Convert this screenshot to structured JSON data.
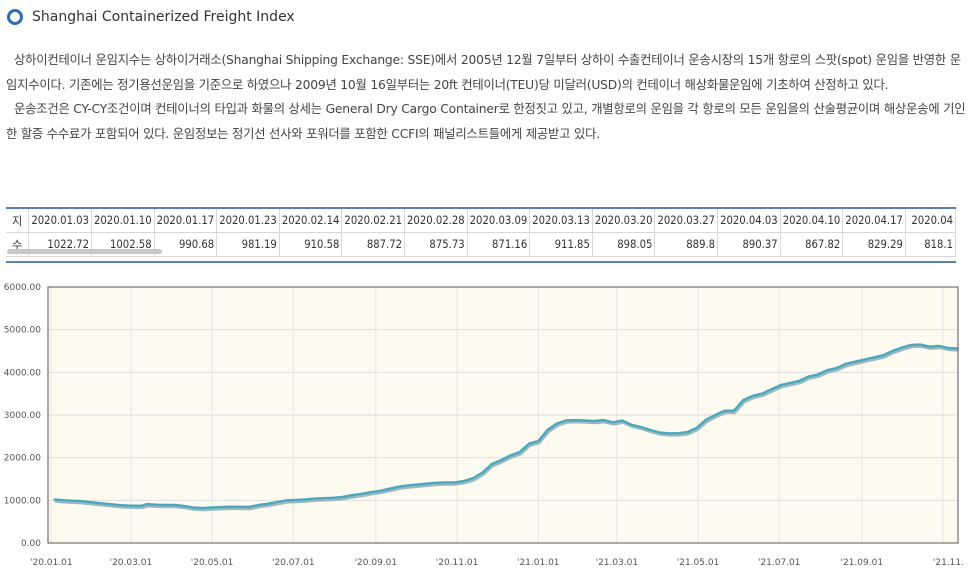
{
  "header": {
    "title": "Shanghai Containerized Freight Index"
  },
  "description": {
    "p1": "상하이컨테이너 운임지수는 상하이거래소(Shanghai Shipping Exchange: SSE)에서 2005년 12월 7일부터 상하이 수출컨테이너 운송시장의 15개 항로의 스팟(spot) 운임을 반영한 운임지수이다. 기존에는 정기용선운임을 기준으로 하였으나 2009년 10월 16일부터는 20ft 컨테이너(TEU)당 미달러(USD)의 컨테이너 해상화물운임에 기초하여 산정하고 있다.",
    "p2": "운송조건은 CY-CY조건이며 컨테이너의 타입과 화물의 상세는 General Dry Cargo Container로 한정짓고 있고, 개별항로의 운임을 각 항로의 모든 운임을의 산술평균이며 해상운송에 기인한 할증 수수료가 포함되어 있다. 운임정보는 정기선 선사와 포워더를 포함한 CCFI의 패널리스트들에게 제공받고 있다."
  },
  "table": {
    "row1_label": "지",
    "row2_label": "수",
    "dates": [
      "2020.01.03",
      "2020.01.10",
      "2020.01.17",
      "2020.01.23",
      "2020.02.14",
      "2020.02.21",
      "2020.02.28",
      "2020.03.09",
      "2020.03.13",
      "2020.03.20",
      "2020.03.27",
      "2020.04.03",
      "2020.04.10",
      "2020.04.17",
      "2020.04"
    ],
    "values": [
      "1022.72",
      "1002.58",
      "990.68",
      "981.19",
      "910.58",
      "887.72",
      "875.73",
      "871.16",
      "911.85",
      "898.05",
      "889.8",
      "890.37",
      "867.82",
      "829.29",
      "818.1"
    ]
  },
  "chart_data": {
    "type": "line",
    "series_color": "#4aa7bd",
    "plot_background": "#fdfbef",
    "grid": true,
    "ylim": [
      0,
      6000
    ],
    "y_ticks": [
      "0.00",
      "1000.00",
      "2000.00",
      "3000.00",
      "4000.00",
      "5000.00",
      "6000.00"
    ],
    "x_ticks": [
      "'20.01.01",
      "'20.03.01",
      "'20.05.01",
      "'20.07.01",
      "'20.09.01",
      "'20.11.01",
      "'21.01.01",
      "'21.03.01",
      "'21.05.01",
      "'21.07.01",
      "'21.09.01",
      "'21.11."
    ],
    "x_tick_dates": [
      "2020-01-01",
      "2020-03-01",
      "2020-05-01",
      "2020-07-01",
      "2020-09-01",
      "2020-11-01",
      "2021-01-01",
      "2021-03-01",
      "2021-05-01",
      "2021-07-01",
      "2021-09-01",
      "2021-11-01"
    ],
    "x_range": [
      "2020-01-01",
      "2021-11-01"
    ],
    "points": [
      [
        "2020-01-03",
        1022.72
      ],
      [
        "2020-01-10",
        1002.58
      ],
      [
        "2020-01-17",
        990.68
      ],
      [
        "2020-01-23",
        981.19
      ],
      [
        "2020-02-14",
        910.58
      ],
      [
        "2020-02-21",
        887.72
      ],
      [
        "2020-02-28",
        875.73
      ],
      [
        "2020-03-09",
        871.16
      ],
      [
        "2020-03-13",
        911.85
      ],
      [
        "2020-03-20",
        898.05
      ],
      [
        "2020-03-27",
        889.8
      ],
      [
        "2020-04-03",
        890.37
      ],
      [
        "2020-04-10",
        867.82
      ],
      [
        "2020-04-17",
        829.29
      ],
      [
        "2020-04-24",
        818.1
      ],
      [
        "2020-05-01",
        835
      ],
      [
        "2020-05-15",
        850
      ],
      [
        "2020-05-29",
        845
      ],
      [
        "2020-06-05",
        890
      ],
      [
        "2020-06-12",
        920
      ],
      [
        "2020-06-19",
        960
      ],
      [
        "2020-06-26",
        1000
      ],
      [
        "2020-07-03",
        1010
      ],
      [
        "2020-07-10",
        1020
      ],
      [
        "2020-07-17",
        1040
      ],
      [
        "2020-07-24",
        1050
      ],
      [
        "2020-07-31",
        1060
      ],
      [
        "2020-08-07",
        1080
      ],
      [
        "2020-08-14",
        1120
      ],
      [
        "2020-08-21",
        1150
      ],
      [
        "2020-08-28",
        1190
      ],
      [
        "2020-09-04",
        1220
      ],
      [
        "2020-09-11",
        1270
      ],
      [
        "2020-09-18",
        1320
      ],
      [
        "2020-09-25",
        1350
      ],
      [
        "2020-10-09",
        1390
      ],
      [
        "2020-10-16",
        1410
      ],
      [
        "2020-10-23",
        1420
      ],
      [
        "2020-10-30",
        1420
      ],
      [
        "2020-11-06",
        1450
      ],
      [
        "2020-11-13",
        1520
      ],
      [
        "2020-11-20",
        1650
      ],
      [
        "2020-11-27",
        1850
      ],
      [
        "2020-12-04",
        1940
      ],
      [
        "2020-12-11",
        2050
      ],
      [
        "2020-12-18",
        2130
      ],
      [
        "2020-12-25",
        2330
      ],
      [
        "2021-01-01",
        2390
      ],
      [
        "2021-01-08",
        2650
      ],
      [
        "2021-01-15",
        2800
      ],
      [
        "2021-01-22",
        2870
      ],
      [
        "2021-01-29",
        2880
      ],
      [
        "2021-02-05",
        2870
      ],
      [
        "2021-02-12",
        2860
      ],
      [
        "2021-02-19",
        2880
      ],
      [
        "2021-02-26",
        2830
      ],
      [
        "2021-03-05",
        2870
      ],
      [
        "2021-03-12",
        2770
      ],
      [
        "2021-03-19",
        2720
      ],
      [
        "2021-03-26",
        2650
      ],
      [
        "2021-04-02",
        2590
      ],
      [
        "2021-04-09",
        2570
      ],
      [
        "2021-04-16",
        2570
      ],
      [
        "2021-04-23",
        2600
      ],
      [
        "2021-04-30",
        2700
      ],
      [
        "2021-05-07",
        2890
      ],
      [
        "2021-05-14",
        3000
      ],
      [
        "2021-05-21",
        3100
      ],
      [
        "2021-05-28",
        3100
      ],
      [
        "2021-06-04",
        3350
      ],
      [
        "2021-06-11",
        3450
      ],
      [
        "2021-06-18",
        3500
      ],
      [
        "2021-06-25",
        3600
      ],
      [
        "2021-07-02",
        3700
      ],
      [
        "2021-07-09",
        3750
      ],
      [
        "2021-07-16",
        3800
      ],
      [
        "2021-07-23",
        3900
      ],
      [
        "2021-07-30",
        3950
      ],
      [
        "2021-08-06",
        4050
      ],
      [
        "2021-08-13",
        4100
      ],
      [
        "2021-08-20",
        4200
      ],
      [
        "2021-08-27",
        4250
      ],
      [
        "2021-09-03",
        4300
      ],
      [
        "2021-09-10",
        4350
      ],
      [
        "2021-09-17",
        4400
      ],
      [
        "2021-09-24",
        4500
      ],
      [
        "2021-10-01",
        4580
      ],
      [
        "2021-10-08",
        4640
      ],
      [
        "2021-10-15",
        4650
      ],
      [
        "2021-10-22",
        4600
      ],
      [
        "2021-10-29",
        4620
      ],
      [
        "2021-11-05",
        4570
      ],
      [
        "2021-11-12",
        4560
      ]
    ]
  }
}
